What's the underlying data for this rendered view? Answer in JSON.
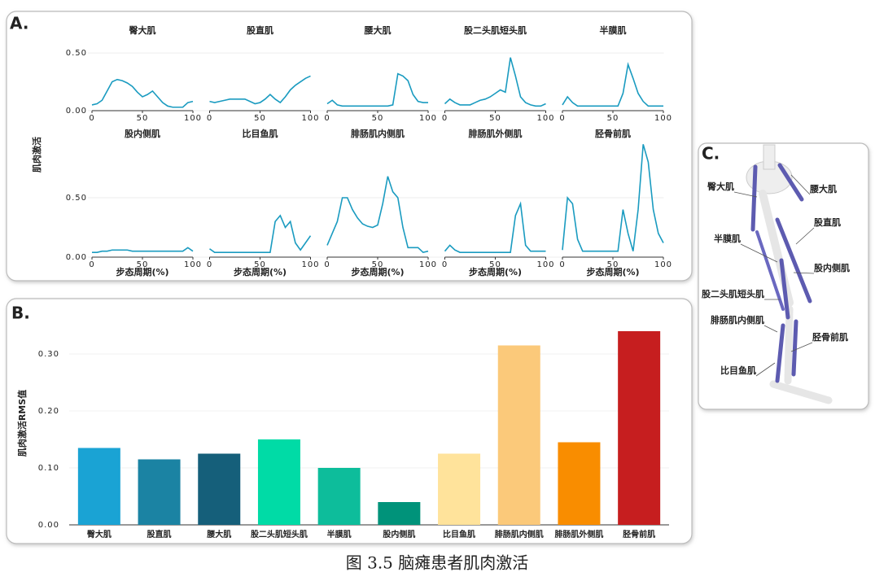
{
  "panel_labels": {
    "a": "A.",
    "b": "B.",
    "c": "C."
  },
  "panel_a_y_label": "肌肉激活",
  "chart_data": [
    {
      "type": "line",
      "title": "臀大肌",
      "x": [
        0,
        5,
        10,
        15,
        20,
        25,
        30,
        35,
        40,
        45,
        50,
        55,
        60,
        65,
        70,
        75,
        80,
        85,
        90,
        95,
        100
      ],
      "values": [
        0.05,
        0.06,
        0.09,
        0.17,
        0.25,
        0.27,
        0.26,
        0.24,
        0.21,
        0.16,
        0.12,
        0.14,
        0.17,
        0.12,
        0.07,
        0.04,
        0.03,
        0.03,
        0.03,
        0.07,
        0.08
      ],
      "color": "#1a9bc0",
      "xlim": [
        0,
        100
      ],
      "ylim": [
        0,
        0.55
      ],
      "xticks": [
        0,
        50,
        100
      ],
      "yticks": [
        {
          "value": 0,
          "label": "0.00"
        },
        {
          "value": 0.5,
          "label": "0.50"
        }
      ],
      "grid": true
    },
    {
      "type": "line",
      "title": "股直肌",
      "x": [
        0,
        5,
        10,
        15,
        20,
        25,
        30,
        35,
        40,
        45,
        50,
        55,
        60,
        65,
        70,
        75,
        80,
        85,
        90,
        95,
        100
      ],
      "values": [
        0.08,
        0.07,
        0.08,
        0.09,
        0.1,
        0.1,
        0.1,
        0.1,
        0.08,
        0.06,
        0.07,
        0.1,
        0.14,
        0.1,
        0.07,
        0.12,
        0.18,
        0.22,
        0.25,
        0.28,
        0.3
      ],
      "color": "#1a9bc0",
      "xlim": [
        0,
        100
      ],
      "ylim": [
        0,
        0.55
      ],
      "xticks": [
        0,
        50,
        100
      ]
    },
    {
      "type": "line",
      "title": "腰大肌",
      "x": [
        0,
        5,
        10,
        15,
        20,
        25,
        30,
        35,
        40,
        45,
        50,
        55,
        60,
        65,
        70,
        75,
        80,
        85,
        90,
        95,
        100
      ],
      "values": [
        0.06,
        0.09,
        0.05,
        0.04,
        0.04,
        0.04,
        0.04,
        0.04,
        0.04,
        0.04,
        0.04,
        0.04,
        0.04,
        0.05,
        0.32,
        0.3,
        0.26,
        0.14,
        0.08,
        0.07,
        0.07
      ],
      "color": "#1a9bc0",
      "xlim": [
        0,
        100
      ],
      "ylim": [
        0,
        0.55
      ],
      "xticks": [
        0,
        50,
        100
      ]
    },
    {
      "type": "line",
      "title": "股二头肌短头肌",
      "x": [
        0,
        5,
        10,
        15,
        20,
        25,
        30,
        35,
        40,
        45,
        50,
        55,
        60,
        65,
        70,
        75,
        80,
        85,
        90,
        95,
        100
      ],
      "values": [
        0.06,
        0.1,
        0.07,
        0.05,
        0.05,
        0.05,
        0.07,
        0.09,
        0.1,
        0.12,
        0.15,
        0.18,
        0.16,
        0.46,
        0.3,
        0.12,
        0.07,
        0.05,
        0.04,
        0.04,
        0.06
      ],
      "color": "#1a9bc0",
      "xlim": [
        0,
        100
      ],
      "ylim": [
        0,
        0.55
      ],
      "xticks": [
        0,
        50,
        100
      ]
    },
    {
      "type": "line",
      "title": "半膜肌",
      "x": [
        0,
        5,
        10,
        15,
        20,
        25,
        30,
        35,
        40,
        45,
        50,
        55,
        60,
        65,
        70,
        75,
        80,
        85,
        90,
        95,
        100
      ],
      "values": [
        0.05,
        0.12,
        0.07,
        0.04,
        0.04,
        0.04,
        0.04,
        0.04,
        0.04,
        0.04,
        0.04,
        0.04,
        0.15,
        0.4,
        0.28,
        0.15,
        0.08,
        0.04,
        0.04,
        0.04,
        0.04
      ],
      "color": "#1a9bc0",
      "xlim": [
        0,
        100
      ],
      "ylim": [
        0,
        0.55
      ],
      "xticks": [
        0,
        50,
        100
      ]
    },
    {
      "type": "line",
      "title": "股内侧肌",
      "x_label": "步态周期(%)",
      "x": [
        0,
        5,
        10,
        15,
        20,
        25,
        30,
        35,
        40,
        45,
        50,
        55,
        60,
        65,
        70,
        75,
        80,
        85,
        90,
        95,
        100
      ],
      "values": [
        0.04,
        0.04,
        0.05,
        0.05,
        0.06,
        0.06,
        0.06,
        0.06,
        0.05,
        0.05,
        0.05,
        0.05,
        0.05,
        0.05,
        0.05,
        0.05,
        0.05,
        0.05,
        0.05,
        0.08,
        0.05
      ],
      "color": "#1a9bc0",
      "xlim": [
        0,
        100
      ],
      "ylim": [
        0,
        1.0
      ],
      "xticks": [
        0,
        50,
        100
      ],
      "yticks": [
        {
          "value": 0,
          "label": "0.00"
        },
        {
          "value": 0.5,
          "label": "0.50"
        }
      ],
      "grid": true
    },
    {
      "type": "line",
      "title": "比目鱼肌",
      "x_label": "步态周期(%)",
      "x": [
        0,
        5,
        10,
        15,
        20,
        25,
        30,
        35,
        40,
        45,
        50,
        55,
        60,
        65,
        70,
        75,
        80,
        85,
        90,
        95,
        100
      ],
      "values": [
        0.07,
        0.04,
        0.04,
        0.04,
        0.04,
        0.04,
        0.04,
        0.04,
        0.04,
        0.04,
        0.04,
        0.04,
        0.04,
        0.3,
        0.35,
        0.25,
        0.3,
        0.12,
        0.06,
        0.12,
        0.18
      ],
      "color": "#1a9bc0",
      "xlim": [
        0,
        100
      ],
      "ylim": [
        0,
        1.0
      ],
      "xticks": [
        0,
        50,
        100
      ]
    },
    {
      "type": "line",
      "title": "腓肠肌内侧肌",
      "x_label": "步态周期(%)",
      "x": [
        0,
        5,
        10,
        15,
        20,
        25,
        30,
        35,
        40,
        45,
        50,
        55,
        60,
        65,
        70,
        75,
        80,
        85,
        90,
        95,
        100
      ],
      "values": [
        0.1,
        0.2,
        0.3,
        0.5,
        0.5,
        0.4,
        0.33,
        0.28,
        0.26,
        0.25,
        0.27,
        0.45,
        0.68,
        0.55,
        0.5,
        0.25,
        0.08,
        0.08,
        0.08,
        0.04,
        0.05
      ],
      "color": "#1a9bc0",
      "xlim": [
        0,
        100
      ],
      "ylim": [
        0,
        1.0
      ],
      "xticks": [
        0,
        50,
        100
      ]
    },
    {
      "type": "line",
      "title": "腓肠肌外侧肌",
      "x_label": "步态周期(%)",
      "x": [
        0,
        5,
        10,
        15,
        20,
        25,
        30,
        35,
        40,
        45,
        50,
        55,
        60,
        65,
        70,
        75,
        80,
        85,
        90,
        95,
        100
      ],
      "values": [
        0.05,
        0.1,
        0.06,
        0.04,
        0.04,
        0.04,
        0.04,
        0.04,
        0.04,
        0.04,
        0.04,
        0.04,
        0.04,
        0.04,
        0.35,
        0.45,
        0.1,
        0.05,
        0.05,
        0.05,
        0.05
      ],
      "color": "#1a9bc0",
      "xlim": [
        0,
        100
      ],
      "ylim": [
        0,
        1.0
      ],
      "xticks": [
        0,
        50,
        100
      ]
    },
    {
      "type": "line",
      "title": "胫骨前肌",
      "x_label": "步态周期(%)",
      "x": [
        0,
        5,
        10,
        15,
        20,
        25,
        30,
        35,
        40,
        45,
        50,
        55,
        60,
        65,
        70,
        75,
        80,
        85,
        90,
        95,
        100
      ],
      "values": [
        0.06,
        0.5,
        0.45,
        0.15,
        0.05,
        0.05,
        0.05,
        0.05,
        0.05,
        0.05,
        0.05,
        0.05,
        0.4,
        0.2,
        0.05,
        0.4,
        0.95,
        0.8,
        0.4,
        0.2,
        0.12
      ],
      "color": "#1a9bc0",
      "xlim": [
        0,
        100
      ],
      "ylim": [
        0,
        1.0
      ],
      "xticks": [
        0,
        50,
        100
      ]
    },
    {
      "type": "bar",
      "y_label": "肌肉激活RMS值",
      "categories": [
        "臀大肌",
        "股直肌",
        "腰大肌",
        "股二头肌短头肌",
        "半膜肌",
        "股内侧肌",
        "比目鱼肌",
        "腓肠肌内侧肌",
        "腓肠肌外侧肌",
        "胫骨前肌"
      ],
      "values": [
        0.135,
        0.115,
        0.125,
        0.15,
        0.1,
        0.04,
        0.125,
        0.315,
        0.145,
        0.34
      ],
      "colors": [
        "#1aa3d4",
        "#1b83a3",
        "#155f7a",
        "#00dba6",
        "#0dbd9b",
        "#00937a",
        "#ffe39b",
        "#fbc97a",
        "#f98d00",
        "#c61e1f"
      ],
      "ylim": [
        0,
        0.35
      ],
      "yticks": [
        {
          "value": 0,
          "label": "0.00"
        },
        {
          "value": 0.1,
          "label": "0.10"
        },
        {
          "value": 0.2,
          "label": "0.20"
        },
        {
          "value": 0.3,
          "label": "0.30"
        }
      ],
      "grid": true
    }
  ],
  "diagram": {
    "labels": [
      "臀大肌",
      "腰大肌",
      "股直肌",
      "半膜肌",
      "股内侧肌",
      "股二头肌短头肌",
      "腓肠肌内侧肌",
      "胫骨前肌",
      "比目鱼肌"
    ]
  },
  "caption": "图 3.5 脑瘫患者肌肉激活"
}
